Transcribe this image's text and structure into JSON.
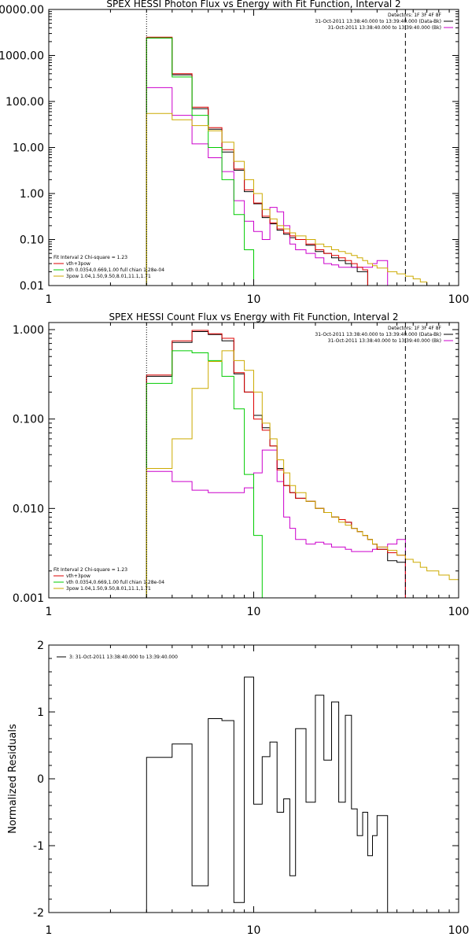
{
  "chart_data": [
    {
      "type": "line",
      "title": "SPEX HESSI Photon Flux vs Energy with Fit Function, Interval 2",
      "xscale": "log",
      "yscale": "log",
      "xlim": [
        1,
        100
      ],
      "ylim": [
        0.01,
        10000
      ],
      "xticks": [
        1,
        10,
        100
      ],
      "xtick_labels": [
        "1",
        "10",
        "100"
      ],
      "yticks": [
        0.01,
        0.1,
        1,
        10,
        100,
        1000,
        10000
      ],
      "ytick_labels": [
        "0.01",
        "0.10",
        "1.00",
        "10.00",
        "100.00",
        "1000.00",
        "10000.00"
      ],
      "vlines": [
        {
          "x": 3,
          "style": "dotted"
        },
        {
          "x": 55,
          "style": "dashed"
        }
      ],
      "legend_tr": [
        {
          "text": "Detectors: 1F 3F 4F 8F",
          "color": ""
        },
        {
          "text": "31-Oct-2011 13:38:40.000 to 13:39:40.000 (Data-Bk)",
          "color": "#000000"
        },
        {
          "text": "31-Oct-2011 13:38:40.000 to 13:39:40.000 (Bk)",
          "color": "#cc00cc"
        }
      ],
      "legend_bl": [
        {
          "text": "Fit Interval 2   Chi-square = 1.23",
          "color": ""
        },
        {
          "text": "vth+3pow",
          "color": "#dd0000"
        },
        {
          "text": "vth 0.0354,0.669,1.00  full chian 1.28e-04",
          "color": "#00cc00"
        },
        {
          "text": "3pow 1.04,1.50,9.50,8.01,11.1,1.71",
          "color": "#ccaa00"
        }
      ],
      "bin_edges": [
        3,
        4,
        5,
        6,
        7,
        8,
        9,
        10,
        11,
        12,
        13,
        14,
        15,
        16,
        18,
        20,
        22,
        24,
        26,
        28,
        30,
        32,
        34,
        36,
        38,
        40,
        45,
        50,
        55,
        60,
        65,
        70,
        80
      ],
      "series": [
        {
          "color": "#000000",
          "values": [
            2400,
            380,
            70,
            25,
            8,
            3.2,
            1.1,
            0.6,
            0.3,
            0.22,
            0.16,
            0.13,
            0.11,
            0.1,
            0.075,
            0.055,
            0.05,
            0.04,
            0.035,
            0.03,
            0.025,
            0.02,
            0.02,
            null,
            null,
            null,
            null,
            null,
            null,
            null,
            null,
            null
          ]
        },
        {
          "color": "#cc00cc",
          "values": [
            200,
            50,
            12,
            6,
            3,
            0.7,
            0.25,
            0.15,
            0.1,
            0.5,
            0.4,
            0.2,
            0.08,
            0.06,
            0.05,
            0.04,
            0.03,
            0.028,
            0.025,
            0.025,
            0.025,
            0.025,
            0.025,
            0.025,
            0.03,
            0.035,
            null,
            null,
            null,
            null,
            null,
            null
          ]
        },
        {
          "color": "#dd0000",
          "values": [
            2500,
            400,
            75,
            27,
            9,
            3.4,
            1.2,
            0.62,
            0.32,
            0.23,
            0.17,
            0.14,
            0.12,
            0.1,
            0.08,
            0.06,
            0.05,
            0.045,
            0.04,
            0.035,
            0.03,
            0.025,
            0.022,
            null,
            null,
            null,
            null,
            null,
            null,
            null,
            null,
            null
          ]
        },
        {
          "color": "#00cc00",
          "values": [
            2400,
            340,
            50,
            10,
            2,
            0.35,
            0.06,
            0.01,
            null,
            null,
            null,
            null,
            null,
            null,
            null,
            null,
            null,
            null,
            null,
            null,
            null,
            null,
            null,
            null,
            null,
            null,
            null,
            null,
            null,
            null,
            null,
            null
          ]
        },
        {
          "color": "#ccaa00",
          "values": [
            55,
            40,
            30,
            23,
            13,
            5,
            2,
            1,
            0.45,
            0.28,
            0.2,
            0.17,
            0.14,
            0.12,
            0.1,
            0.08,
            0.07,
            0.06,
            0.055,
            0.05,
            0.045,
            0.04,
            0.035,
            0.03,
            0.027,
            0.024,
            0.02,
            0.018,
            0.016,
            0.014,
            0.012,
            0.01
          ]
        }
      ]
    },
    {
      "type": "line",
      "title": "SPEX HESSI Count Flux vs Energy with Fit Function, Interval 2",
      "xscale": "log",
      "yscale": "log",
      "xlim": [
        1,
        100
      ],
      "ylim": [
        0.001,
        1.2
      ],
      "xticks": [
        1,
        10,
        100
      ],
      "xtick_labels": [
        "1",
        "10",
        "100"
      ],
      "yticks": [
        0.001,
        0.01,
        0.1,
        1
      ],
      "ytick_labels": [
        "0.001",
        "0.010",
        "0.100",
        "1.000"
      ],
      "vlines": [
        {
          "x": 3,
          "style": "dotted"
        },
        {
          "x": 55,
          "style": "dashed"
        }
      ],
      "legend_tr": [
        {
          "text": "Detectors: 1F 3F 4F 8F",
          "color": ""
        },
        {
          "text": "31-Oct-2011 13:38:40.000 to 13:39:40.000 (Data-Bk)",
          "color": "#000000"
        },
        {
          "text": "31-Oct-2011 13:38:40.000 to 13:39:40.000 (Bk)",
          "color": "#cc00cc"
        }
      ],
      "legend_bl": [
        {
          "text": "Fit Interval 2   Chi-square = 1.23",
          "color": ""
        },
        {
          "text": "vth+3pow",
          "color": "#dd0000"
        },
        {
          "text": "vth 0.0354,0.669,1.00  full chian 1.28e-04",
          "color": "#00cc00"
        },
        {
          "text": "3pow 1.04,1.50,9.50,8.01,11.1,1.71",
          "color": "#ccaa00"
        }
      ],
      "bin_edges": [
        3,
        4,
        5,
        6,
        7,
        8,
        9,
        10,
        11,
        12,
        13,
        14,
        15,
        16,
        18,
        20,
        22,
        24,
        26,
        28,
        30,
        32,
        34,
        36,
        38,
        40,
        45,
        50,
        55,
        60,
        65,
        70,
        80,
        90,
        100
      ],
      "series": [
        {
          "color": "#000000",
          "values": [
            0.3,
            0.72,
            0.95,
            0.88,
            0.75,
            0.32,
            0.2,
            0.11,
            0.08,
            0.05,
            0.028,
            0.018,
            0.015,
            0.013,
            0.012,
            0.01,
            0.009,
            0.008,
            0.0075,
            0.007,
            0.006,
            0.0055,
            0.005,
            0.0045,
            0.004,
            0.0035,
            0.0026,
            0.0025,
            null,
            null,
            null,
            null,
            null,
            null
          ]
        },
        {
          "color": "#cc00cc",
          "values": [
            0.026,
            0.02,
            0.016,
            0.015,
            0.015,
            0.015,
            0.017,
            0.025,
            0.045,
            0.045,
            0.02,
            0.008,
            0.006,
            0.0045,
            0.004,
            0.0042,
            0.004,
            0.0037,
            0.0037,
            0.0035,
            0.0033,
            0.0033,
            0.0033,
            0.0033,
            0.0035,
            0.0037,
            0.004,
            0.0045,
            null,
            null,
            null,
            null,
            null,
            null
          ]
        },
        {
          "color": "#dd0000",
          "values": [
            0.31,
            0.75,
            0.98,
            0.9,
            0.8,
            0.33,
            0.2,
            0.1,
            0.075,
            0.05,
            0.027,
            0.018,
            0.015,
            0.013,
            0.012,
            0.01,
            0.009,
            0.008,
            0.0075,
            0.007,
            0.006,
            0.0055,
            0.005,
            0.0045,
            0.004,
            0.0035,
            0.0032,
            0.003,
            null,
            null,
            null,
            null,
            null,
            null
          ]
        },
        {
          "color": "#00cc00",
          "values": [
            0.25,
            0.58,
            0.55,
            0.45,
            0.3,
            0.13,
            0.024,
            0.005,
            0.001,
            null,
            null,
            null,
            null,
            null,
            null,
            null,
            null,
            null,
            null,
            null,
            null,
            null,
            null,
            null,
            null,
            null,
            null,
            null,
            null,
            null,
            null,
            null,
            null,
            null
          ]
        },
        {
          "color": "#ccaa00",
          "values": [
            0.028,
            0.06,
            0.22,
            0.44,
            0.58,
            0.45,
            0.35,
            0.2,
            0.09,
            0.06,
            0.035,
            0.025,
            0.018,
            0.015,
            0.012,
            0.01,
            0.009,
            0.008,
            0.007,
            0.0065,
            0.006,
            0.0055,
            0.005,
            0.0045,
            0.004,
            0.0037,
            0.0034,
            0.003,
            0.0027,
            0.0025,
            0.0022,
            0.002,
            0.0018,
            0.0016
          ]
        }
      ]
    },
    {
      "type": "line",
      "title": "",
      "ylabel": "Normalized Residuals",
      "xscale": "log",
      "yscale": "linear",
      "xlim": [
        1,
        100
      ],
      "ylim": [
        -2,
        2
      ],
      "xticks": [
        1,
        10,
        100
      ],
      "xtick_labels": [
        "1",
        "10",
        "100"
      ],
      "yticks": [
        -2,
        -1,
        0,
        1,
        2
      ],
      "ytick_labels": [
        "-2",
        "-1",
        "0",
        "1",
        "2"
      ],
      "legend_tl": [
        {
          "text": "3: 31-Oct-2011 13:38:40.000 to 13:39:40.000",
          "color": "#000000"
        }
      ],
      "bin_edges": [
        3,
        4,
        5,
        6,
        7,
        8,
        9,
        10,
        11,
        12,
        13,
        14,
        15,
        16,
        18,
        20,
        22,
        24,
        26,
        28,
        30,
        32,
        34,
        36,
        38,
        40,
        45,
        50,
        55
      ],
      "series": [
        {
          "color": "#000000",
          "values": [
            0.32,
            0.52,
            -1.6,
            0.9,
            0.87,
            -1.85,
            1.52,
            -0.38,
            0.33,
            0.55,
            -0.5,
            -0.3,
            -1.45,
            0.75,
            -0.35,
            1.25,
            0.28,
            1.15,
            -0.35,
            0.95,
            -0.45,
            -0.85,
            -0.5,
            -1.15,
            -0.85,
            -0.55,
            -2.0,
            -2.0
          ]
        }
      ]
    }
  ]
}
